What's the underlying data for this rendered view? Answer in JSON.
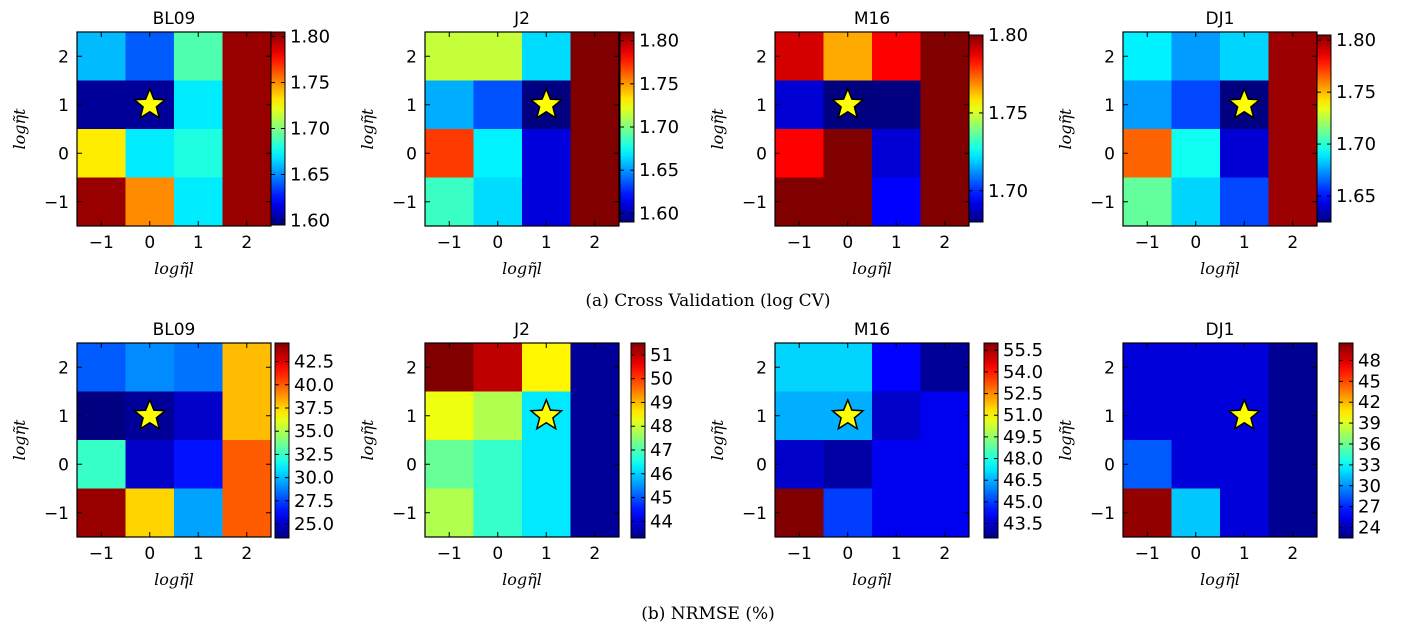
{
  "chart_data": [
    {
      "type": "heatmap",
      "title": "BL09",
      "xlabel": "logη̃l",
      "ylabel": "logη̃t",
      "x": [
        "−1",
        "0",
        "1",
        "2"
      ],
      "y": [
        "2",
        "1",
        "0",
        "−1"
      ],
      "values": [
        [
          1.66,
          1.64,
          1.69,
          1.8
        ],
        [
          1.6,
          1.6,
          1.67,
          1.8
        ],
        [
          1.73,
          1.67,
          1.68,
          1.8
        ],
        [
          1.8,
          1.75,
          1.67,
          1.8
        ]
      ],
      "clim": [
        1.595,
        1.805
      ],
      "colorbar_ticks": [
        "1.60",
        "1.65",
        "1.70",
        "1.75",
        "1.80"
      ],
      "colorbar_tick_values": [
        1.6,
        1.65,
        1.7,
        1.75,
        1.8
      ],
      "star": {
        "x": "0",
        "y": "1"
      }
    },
    {
      "type": "heatmap",
      "title": "J2",
      "xlabel": "logη̃l",
      "ylabel": "logη̃t",
      "x": [
        "−1",
        "0",
        "1",
        "2"
      ],
      "y": [
        "2",
        "1",
        "0",
        "−1"
      ],
      "values": [
        [
          1.715,
          1.715,
          1.665,
          1.81
        ],
        [
          1.655,
          1.635,
          1.59,
          1.81
        ],
        [
          1.77,
          1.67,
          1.61,
          1.81
        ],
        [
          1.685,
          1.665,
          1.61,
          1.81
        ]
      ],
      "clim": [
        1.59,
        1.81
      ],
      "colorbar_ticks": [
        "1.60",
        "1.65",
        "1.70",
        "1.75",
        "1.80"
      ],
      "colorbar_tick_values": [
        1.6,
        1.65,
        1.7,
        1.75,
        1.8
      ],
      "star": {
        "x": "1",
        "y": "1"
      }
    },
    {
      "type": "heatmap",
      "title": "M16",
      "xlabel": "logη̃l",
      "ylabel": "logη̃t",
      "x": [
        "−1",
        "0",
        "1",
        "2"
      ],
      "y": [
        "2",
        "1",
        "0",
        "−1"
      ],
      "values": [
        [
          1.79,
          1.765,
          1.785,
          1.81
        ],
        [
          1.69,
          1.68,
          1.68,
          1.81
        ],
        [
          1.785,
          1.81,
          1.69,
          1.81
        ],
        [
          1.81,
          1.81,
          1.695,
          1.81
        ]
      ],
      "clim": [
        1.68,
        1.8
      ],
      "colorbar_ticks": [
        "1.70",
        "1.75",
        "1.80"
      ],
      "colorbar_tick_values": [
        1.7,
        1.75,
        1.8
      ],
      "star": {
        "x": "0",
        "y": "1"
      }
    },
    {
      "type": "heatmap",
      "title": "DJ1",
      "xlabel": "logη̃l",
      "ylabel": "logη̃t",
      "x": [
        "−1",
        "0",
        "1",
        "2"
      ],
      "y": [
        "2",
        "1",
        "0",
        "−1"
      ],
      "values": [
        [
          1.69,
          1.675,
          1.685,
          1.8
        ],
        [
          1.675,
          1.66,
          1.625,
          1.8
        ],
        [
          1.765,
          1.695,
          1.64,
          1.8
        ],
        [
          1.71,
          1.685,
          1.66,
          1.8
        ]
      ],
      "clim": [
        1.625,
        1.805
      ],
      "colorbar_ticks": [
        "1.65",
        "1.70",
        "1.75",
        "1.80"
      ],
      "colorbar_tick_values": [
        1.65,
        1.7,
        1.75,
        1.8
      ],
      "star": {
        "x": "1",
        "y": "1"
      }
    },
    {
      "type": "heatmap",
      "title": "BL09",
      "xlabel": "logη̃l",
      "ylabel": "logη̃t",
      "x": [
        "−1",
        "0",
        "1",
        "2"
      ],
      "y": [
        "2",
        "1",
        "0",
        "−1"
      ],
      "values": [
        [
          28,
          29,
          28.5,
          38
        ],
        [
          23.5,
          24,
          25,
          38
        ],
        [
          32.5,
          25,
          26.5,
          40
        ],
        [
          44,
          37.5,
          29.5,
          40
        ]
      ],
      "clim": [
        23.5,
        44.5
      ],
      "colorbar_ticks": [
        "25.0",
        "27.5",
        "30.0",
        "32.5",
        "35.0",
        "37.5",
        "40.0",
        "42.5"
      ],
      "colorbar_tick_values": [
        25.0,
        27.5,
        30.0,
        32.5,
        35.0,
        37.5,
        40.0,
        42.5
      ],
      "star": {
        "x": "0",
        "y": "1"
      }
    },
    {
      "type": "heatmap",
      "title": "J2",
      "xlabel": "logη̃l",
      "ylabel": "logη̃t",
      "x": [
        "−1",
        "0",
        "1",
        "2"
      ],
      "y": [
        "2",
        "1",
        "0",
        "−1"
      ],
      "values": [
        [
          51.5,
          51,
          48.5,
          43.5
        ],
        [
          48.3,
          47.8,
          46.2,
          43.5
        ],
        [
          47.2,
          46.8,
          46.2,
          43.5
        ],
        [
          47.8,
          46.8,
          46.2,
          43.5
        ]
      ],
      "clim": [
        43.3,
        51.5
      ],
      "colorbar_ticks": [
        "44",
        "45",
        "46",
        "47",
        "48",
        "49",
        "50",
        "51"
      ],
      "colorbar_tick_values": [
        44,
        45,
        46,
        47,
        48,
        49,
        50,
        51
      ],
      "star": {
        "x": "1",
        "y": "1"
      }
    },
    {
      "type": "heatmap",
      "title": "M16",
      "xlabel": "logη̃l",
      "ylabel": "logη̃t",
      "x": [
        "−1",
        "0",
        "1",
        "2"
      ],
      "y": [
        "2",
        "1",
        "0",
        "−1"
      ],
      "values": [
        [
          47,
          47,
          44.2,
          42.8
        ],
        [
          46.5,
          46.5,
          43.5,
          44
        ],
        [
          43.5,
          43,
          44,
          44
        ],
        [
          56,
          45,
          44,
          44
        ]
      ],
      "clim": [
        42.5,
        56
      ],
      "colorbar_ticks": [
        "43.5",
        "45.0",
        "46.5",
        "48.0",
        "49.5",
        "51.0",
        "52.5",
        "54.0",
        "55.5"
      ],
      "colorbar_tick_values": [
        43.5,
        45.0,
        46.5,
        48.0,
        49.5,
        51.0,
        52.5,
        54.0,
        55.5
      ],
      "star": {
        "x": "0",
        "y": "1"
      }
    },
    {
      "type": "heatmap",
      "title": "DJ1",
      "xlabel": "logη̃l",
      "ylabel": "logη̃t",
      "x": [
        "−1",
        "0",
        "1",
        "2"
      ],
      "y": [
        "2",
        "1",
        "0",
        "−1"
      ],
      "values": [
        [
          25,
          25,
          25,
          23
        ],
        [
          25,
          25,
          25,
          23
        ],
        [
          28.5,
          25,
          25,
          23
        ],
        [
          50,
          31.5,
          25,
          23
        ]
      ],
      "clim": [
        22.5,
        50.5
      ],
      "colorbar_ticks": [
        "24",
        "27",
        "30",
        "33",
        "36",
        "39",
        "42",
        "45",
        "48"
      ],
      "colorbar_tick_values": [
        24,
        27,
        30,
        33,
        36,
        39,
        42,
        45,
        48
      ],
      "star": {
        "x": "1",
        "y": "1"
      }
    }
  ],
  "captions": {
    "top": "(a) Cross Validation (log CV)",
    "bottom": "(b) NRMSE (%)"
  },
  "colors": {
    "star_fill": "#ffff00",
    "star_stroke": "#000000",
    "colormap": "jet"
  }
}
